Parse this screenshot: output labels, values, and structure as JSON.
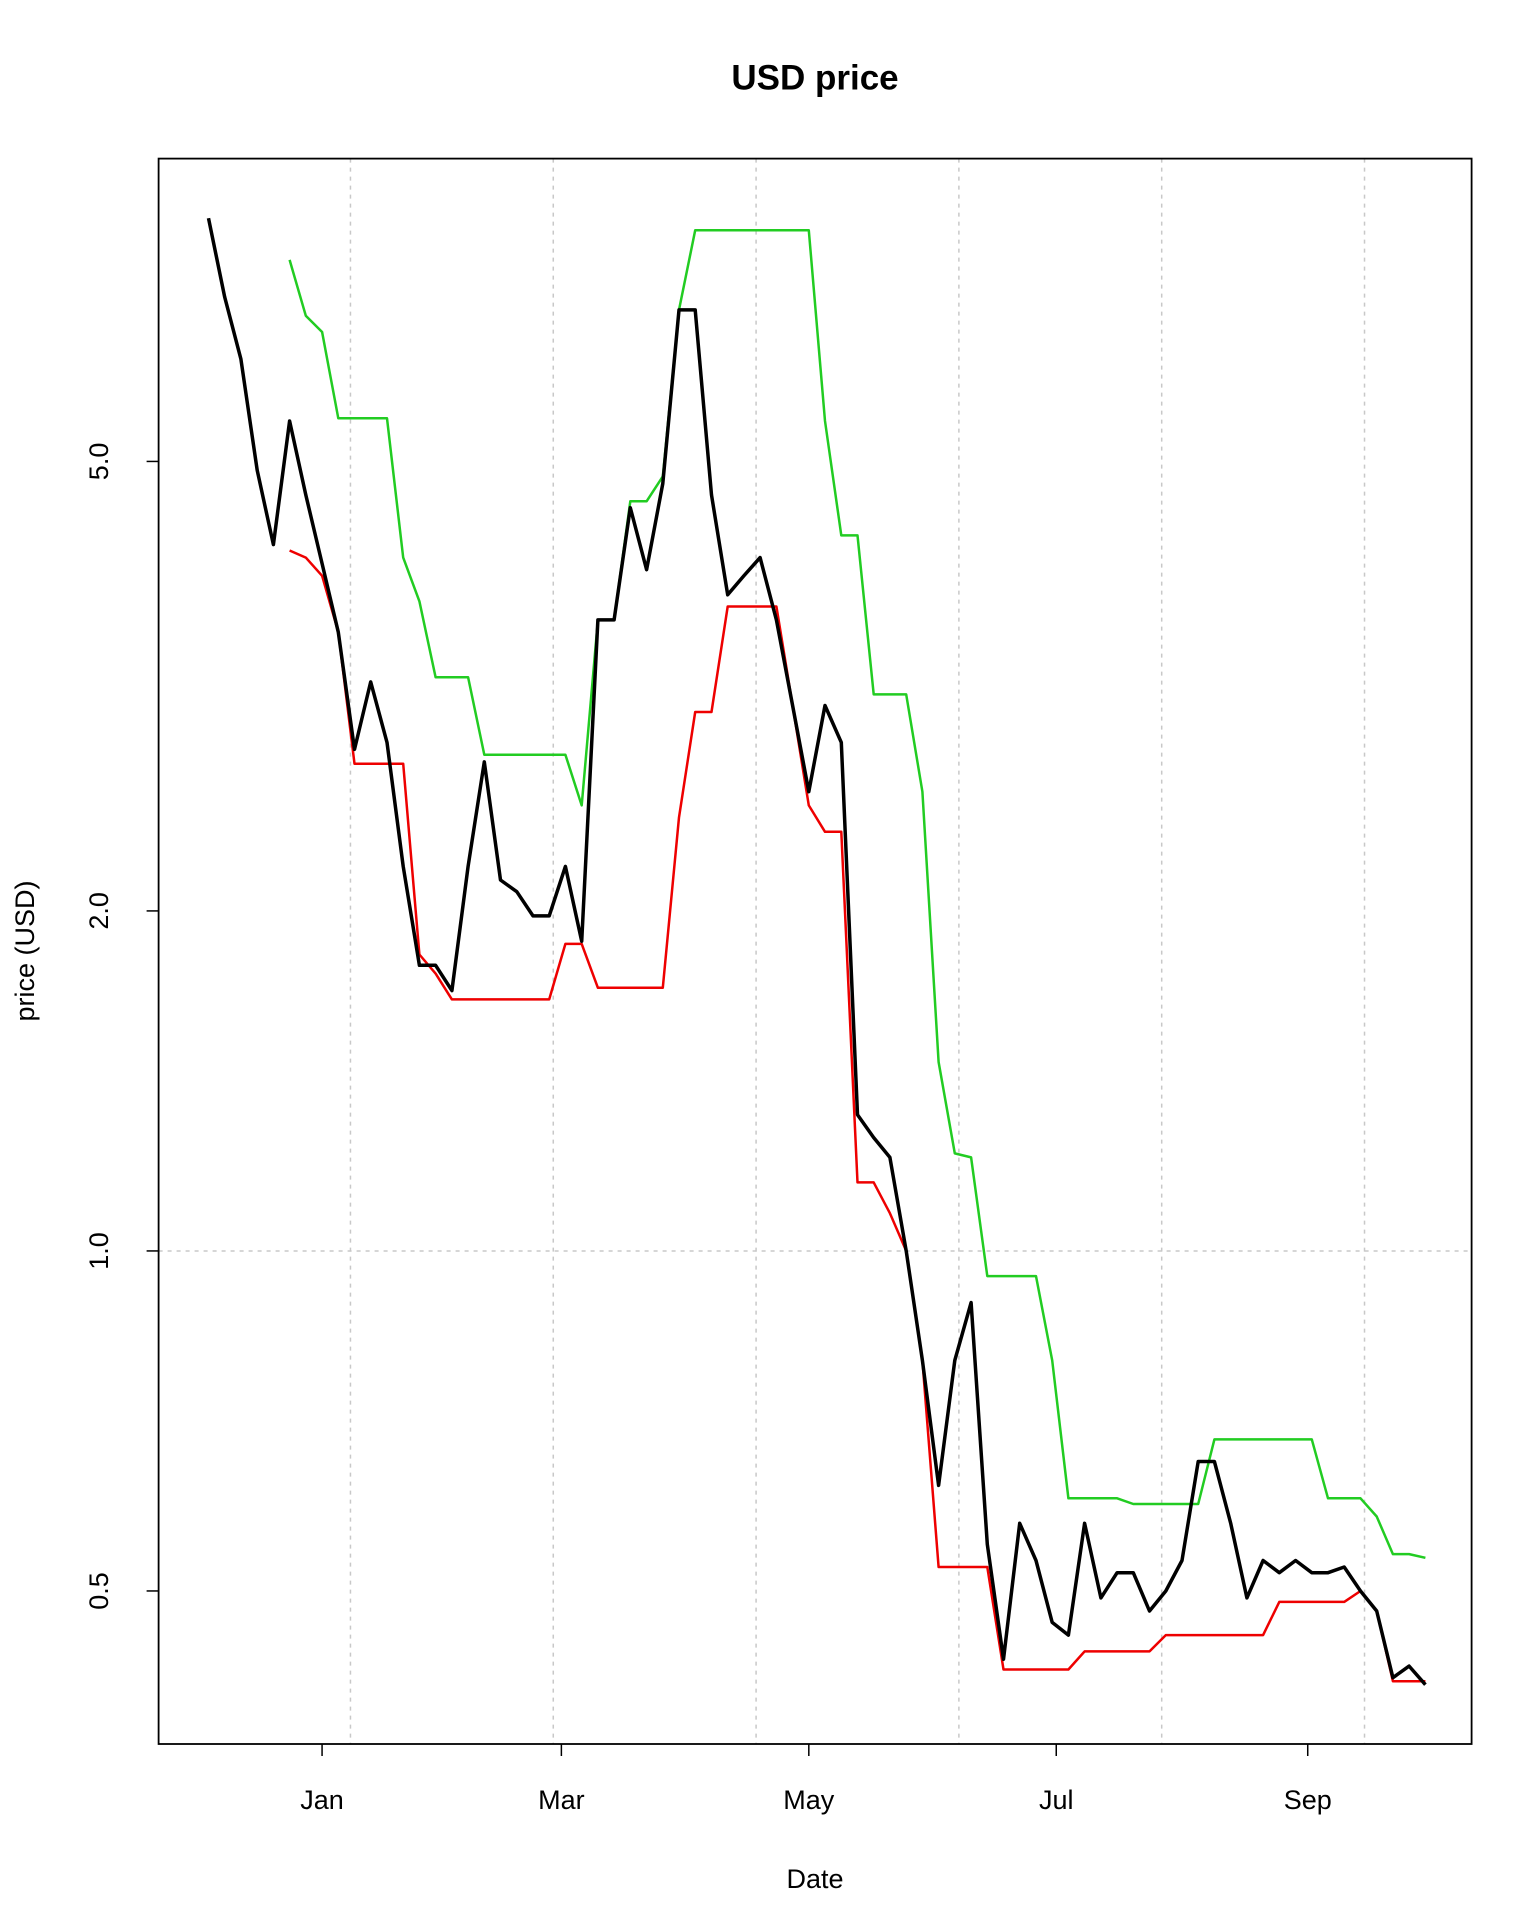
{
  "chart_data": {
    "type": "line",
    "title": "USD price",
    "x_label": "Date",
    "y_label": "price (USD)",
    "log_y": true,
    "x": [
      -28,
      -24,
      -20,
      -16,
      -12,
      -8,
      -4,
      0,
      4,
      8,
      12,
      16,
      20,
      24,
      28,
      32,
      36,
      40,
      44,
      48,
      52,
      56,
      60,
      64,
      68,
      72,
      76,
      80,
      84,
      88,
      92,
      96,
      100,
      104,
      108,
      112,
      116,
      120,
      124,
      128,
      132,
      136,
      140,
      144,
      148,
      152,
      156,
      160,
      164,
      168,
      172,
      176,
      180,
      184,
      188,
      192,
      196,
      200,
      204,
      208,
      212,
      216,
      220,
      224,
      228,
      232,
      236,
      240,
      244,
      248,
      252,
      256,
      260,
      264,
      268,
      272
    ],
    "series": [
      {
        "color": "#000000",
        "width": 3.5,
        "values": [
          8.21,
          6.99,
          6.16,
          4.91,
          4.22,
          5.43,
          4.67,
          4.06,
          3.53,
          2.78,
          3.19,
          2.82,
          2.19,
          1.79,
          1.79,
          1.7,
          2.19,
          2.71,
          2.13,
          2.08,
          1.98,
          1.98,
          2.19,
          1.88,
          3.62,
          3.62,
          4.55,
          4.01,
          4.78,
          6.81,
          6.81,
          4.67,
          3.81,
          3.96,
          4.11,
          3.62,
          3.04,
          2.55,
          3.04,
          2.82,
          1.32,
          1.26,
          1.21,
          1.0,
          0.8,
          0.62,
          0.8,
          0.9,
          0.55,
          0.435,
          0.574,
          0.532,
          0.469,
          0.457,
          0.574,
          0.493,
          0.519,
          0.519,
          0.48,
          0.5,
          0.532,
          0.651,
          0.651,
          0.574,
          0.493,
          0.532,
          0.519,
          0.532,
          0.519,
          0.519,
          0.525,
          0.5,
          0.48,
          0.419,
          0.429,
          0.413
        ]
      },
      {
        "color": "#22cc22",
        "width": 2.5,
        "values": [
          null,
          null,
          null,
          null,
          null,
          7.54,
          6.73,
          6.51,
          5.46,
          5.46,
          5.46,
          5.46,
          4.11,
          3.76,
          3.22,
          3.22,
          3.22,
          2.75,
          2.75,
          2.75,
          2.75,
          2.75,
          2.75,
          2.48,
          3.62,
          3.62,
          4.61,
          4.61,
          4.85,
          6.81,
          8.01,
          8.01,
          8.01,
          8.01,
          8.01,
          8.01,
          8.01,
          8.01,
          5.43,
          4.3,
          4.3,
          3.11,
          3.11,
          3.11,
          2.55,
          1.47,
          1.22,
          1.21,
          0.95,
          0.95,
          0.95,
          0.95,
          0.8,
          0.604,
          0.604,
          0.604,
          0.604,
          0.597,
          0.597,
          0.597,
          0.597,
          0.597,
          0.681,
          0.681,
          0.681,
          0.681,
          0.681,
          0.681,
          0.681,
          0.604,
          0.604,
          0.604,
          0.582,
          0.539,
          0.539,
          0.535
        ]
      },
      {
        "color": "#ee0000",
        "width": 2.5,
        "values": [
          null,
          null,
          null,
          null,
          null,
          4.17,
          4.11,
          3.96,
          3.53,
          2.7,
          2.7,
          2.7,
          2.7,
          1.83,
          1.76,
          1.67,
          1.67,
          1.67,
          1.67,
          1.67,
          1.67,
          1.67,
          1.87,
          1.87,
          1.71,
          1.71,
          1.71,
          1.71,
          1.71,
          2.42,
          3.0,
          3.0,
          3.72,
          3.72,
          3.72,
          3.72,
          3.04,
          2.48,
          2.35,
          2.35,
          1.15,
          1.15,
          1.08,
          1.0,
          0.8,
          0.525,
          0.525,
          0.525,
          0.525,
          0.426,
          0.426,
          0.426,
          0.426,
          0.426,
          0.442,
          0.442,
          0.442,
          0.442,
          0.442,
          0.457,
          0.457,
          0.457,
          0.457,
          0.457,
          0.457,
          0.457,
          0.489,
          0.489,
          0.489,
          0.489,
          0.489,
          0.5,
          0.48,
          0.416,
          0.416,
          0.416
        ]
      }
    ],
    "xlim": [
      -40.3,
      283.4
    ],
    "ylim": [
      0.366,
      9.27
    ],
    "xticks": [
      {
        "value": 0,
        "label": "Jan"
      },
      {
        "value": 59,
        "label": "Mar"
      },
      {
        "value": 120,
        "label": "May"
      },
      {
        "value": 181,
        "label": "Jul"
      },
      {
        "value": 243,
        "label": "Sep"
      }
    ],
    "yticks": [
      0.5,
      {
        "value": 1,
        "label": "1.0"
      },
      {
        "value": 2,
        "label": "2.0"
      },
      {
        "value": 5,
        "label": "5.0"
      }
    ],
    "x_grid": [
      7,
      57,
      107,
      157,
      207,
      257
    ],
    "y_grid": [
      1
    ]
  }
}
